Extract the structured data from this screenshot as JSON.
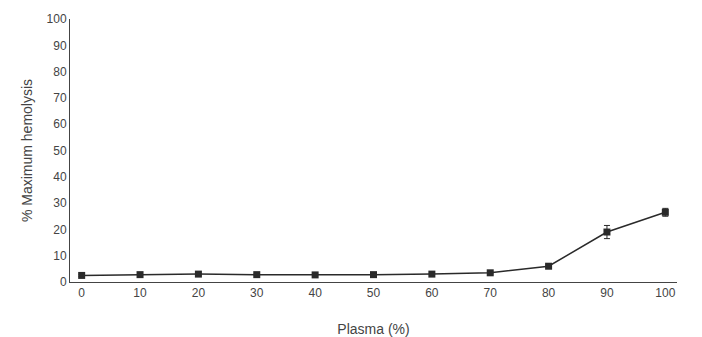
{
  "chart_data": {
    "type": "line",
    "x": [
      0,
      10,
      20,
      30,
      40,
      50,
      60,
      70,
      80,
      90,
      100
    ],
    "values": [
      2.5,
      2.8,
      3.0,
      2.8,
      2.7,
      2.8,
      3.0,
      3.5,
      6.0,
      19.0,
      26.5
    ],
    "yerr": [
      0.4,
      0.3,
      0.4,
      0.3,
      0.3,
      0.3,
      0.3,
      0.4,
      0.5,
      2.5,
      1.5
    ],
    "xlabel": "Plasma (%)",
    "ylabel": "% Maximum hemolysis",
    "xlim": [
      -2,
      102
    ],
    "ylim": [
      0,
      100
    ],
    "xticks": [
      0,
      10,
      20,
      30,
      40,
      50,
      60,
      70,
      80,
      90,
      100
    ],
    "yticks": [
      0,
      10,
      20,
      30,
      40,
      50,
      60,
      70,
      80,
      90,
      100
    ],
    "color": "#2a2a2a",
    "marker": "square",
    "line_style": "solid",
    "grid": false
  }
}
